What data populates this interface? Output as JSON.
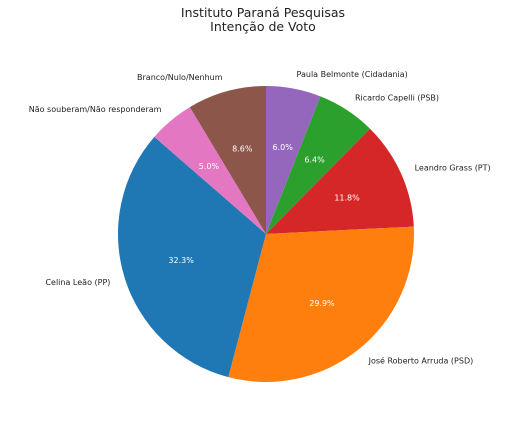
{
  "chart_data": {
    "type": "pie",
    "title": "Instituto Paraná Pesquisas",
    "subtitle": "Intenção de Voto",
    "slices": [
      {
        "label": "Paula Belmonte (Cidadania)",
        "value": 6.0,
        "pct_label": "6.0%",
        "color": "#9467bd"
      },
      {
        "label": "Ricardo Capelli (PSB)",
        "value": 6.4,
        "pct_label": "6.4%",
        "color": "#2ca02c"
      },
      {
        "label": "Leandro Grass (PT)",
        "value": 11.8,
        "pct_label": "11.8%",
        "color": "#d62728"
      },
      {
        "label": "José Roberto Arruda (PSD)",
        "value": 29.9,
        "pct_label": "29.9%",
        "color": "#ff7f0e"
      },
      {
        "label": "Celina Leão (PP)",
        "value": 32.3,
        "pct_label": "32.3%",
        "color": "#1f77b4"
      },
      {
        "label": "Não souberam/Não responderam",
        "value": 5.0,
        "pct_label": "5.0%",
        "color": "#e377c2"
      },
      {
        "label": "Branco/Nulo/Nenhum",
        "value": 8.6,
        "pct_label": "8.6%",
        "color": "#8c564b"
      }
    ]
  }
}
